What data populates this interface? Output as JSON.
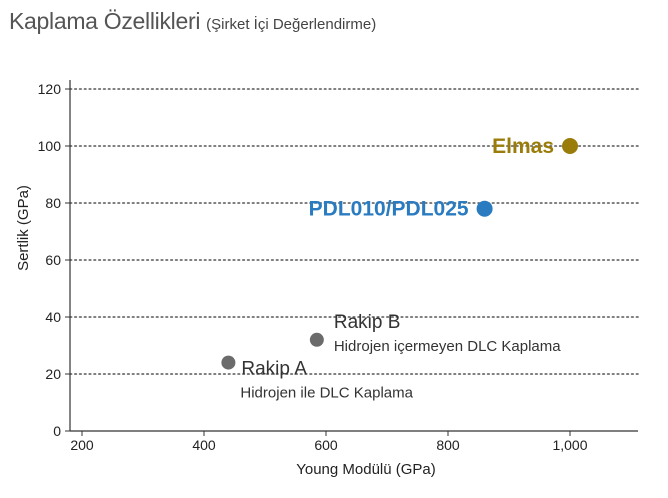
{
  "title": {
    "main": "Kaplama Özellikleri",
    "sub": "(Şirket İçi Değerlendirme)"
  },
  "chart_data": {
    "type": "scatter",
    "title": "Kaplama Özellikleri",
    "subtitle": "(Şirket İçi Değerlendirme)",
    "xlabel": "Young Modülü (GPa)",
    "ylabel": "Sertlik (GPa)",
    "xlim": [
      200,
      1100
    ],
    "ylim": [
      0,
      125
    ],
    "xticks": [
      200,
      400,
      600,
      800,
      1000
    ],
    "xtick_labels": [
      "200",
      "400",
      "600",
      "800",
      "1,000"
    ],
    "yticks": [
      0,
      20,
      40,
      60,
      80,
      100,
      120
    ],
    "ytick_labels": [
      "0",
      "20",
      "40",
      "60",
      "80",
      "100",
      "120"
    ],
    "grid": "horizontal dotted",
    "points": [
      {
        "name": "Elmas",
        "note": "",
        "x": 1000,
        "y": 100,
        "color": "#9a7c0a",
        "style": "highlight"
      },
      {
        "name": "PDL010/PDL025",
        "note": "",
        "x": 860,
        "y": 78,
        "color": "#2a7bc0",
        "style": "highlight"
      },
      {
        "name": "Rakip B",
        "note": "Hidrojen içermeyen DLC Kaplama",
        "x": 585,
        "y": 32,
        "color": "#6b6b6b",
        "style": "competitor"
      },
      {
        "name": "Rakip A",
        "note": "Hidrojen ile DLC Kaplama",
        "x": 440,
        "y": 24,
        "color": "#6b6b6b",
        "style": "competitor"
      }
    ]
  }
}
